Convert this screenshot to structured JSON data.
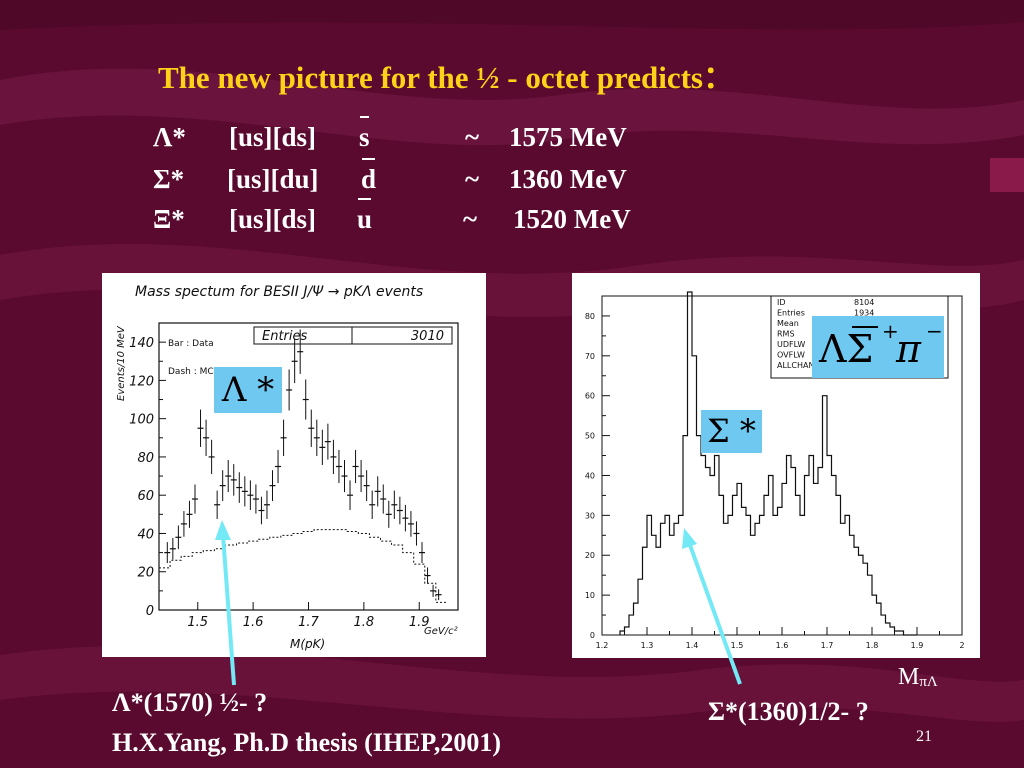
{
  "slide": {
    "title_before": "The new picture for the",
    "title_half": "½",
    "title_after": "- octet predicts",
    "title_colon": "：",
    "rows": [
      {
        "state": "Λ*",
        "content": "[us][ds]",
        "antiquark": "s",
        "approx": "~",
        "mass": "1575 MeV"
      },
      {
        "state": "Σ*",
        "content": "[us][du]",
        "antiquark": "d",
        "approx": "~",
        "mass": "1360 MeV"
      },
      {
        "state": "Ξ*",
        "content": "[us][ds]",
        "antiquark": "u",
        "approx": "~",
        "mass": "1520 MeV"
      }
    ],
    "left_note": {
      "line1": "Λ*(1570) ½-     ?",
      "line2": "H.X.Yang, Ph.D thesis (IHEP,2001)"
    },
    "right_note": "Σ*(1360)1/2- ?",
    "mass_label": "M",
    "mass_label_sub": "πΛ",
    "page_number": "21",
    "colors": {
      "background": "#5a0a2e",
      "title": "#ffd21a",
      "text": "#ffffff",
      "label_box": "#6ec8f0",
      "arrow": "#73e9f5"
    }
  },
  "left_plot": {
    "title": "Mass spectum for BESII J/Ψ → pKΛ events",
    "ylabel": "Events/10 MeV",
    "xlabel": "M(pK)",
    "xunit": "GeV/c²",
    "entries_label": "Entries",
    "entries_value": "3010",
    "legend_bar": "Bar : Data",
    "legend_dash": "Dash : MC",
    "label": "Λ *",
    "x_ticks": [
      "1.5",
      "1.6",
      "1.7",
      "1.8",
      "1.9"
    ],
    "y_ticks": [
      "0",
      "20",
      "40",
      "60",
      "80",
      "100",
      "120",
      "140"
    ]
  },
  "right_plot": {
    "label": "Σ *",
    "channel_label": "ΛΣ",
    "channel_label_pi": "π",
    "x_ticks": [
      "1.2",
      "1.3",
      "1.4",
      "1.5",
      "1.6",
      "1.7",
      "1.8",
      "1.9",
      "2"
    ],
    "y_ticks": [
      "0",
      "10",
      "20",
      "30",
      "40",
      "50",
      "60",
      "70",
      "80"
    ],
    "stats_labels": [
      "ID",
      "Entries",
      "Mean",
      "RMS",
      "UDFLW",
      "OVFLW",
      "ALLCHAN"
    ],
    "stats_values": [
      "8104",
      "1934",
      "",
      "",
      "",
      "",
      ""
    ]
  },
  "chart_data": [
    {
      "type": "scatter",
      "title": "Mass spectum for BESII J/Ψ → pKΛ events",
      "xlabel": "M(pK)",
      "ylabel": "Events/10 MeV",
      "xlim": [
        1.43,
        1.97
      ],
      "ylim": [
        0,
        150
      ],
      "grid": false,
      "legend": "top-left",
      "series": [
        {
          "name": "Data",
          "x": [
            1.445,
            1.455,
            1.465,
            1.475,
            1.485,
            1.495,
            1.505,
            1.515,
            1.525,
            1.535,
            1.545,
            1.555,
            1.565,
            1.575,
            1.585,
            1.595,
            1.605,
            1.615,
            1.625,
            1.635,
            1.645,
            1.655,
            1.665,
            1.675,
            1.685,
            1.695,
            1.705,
            1.715,
            1.725,
            1.735,
            1.745,
            1.755,
            1.765,
            1.775,
            1.785,
            1.795,
            1.805,
            1.815,
            1.825,
            1.835,
            1.845,
            1.855,
            1.865,
            1.875,
            1.885,
            1.895,
            1.905,
            1.915,
            1.925,
            1.935
          ],
          "y": [
            30,
            32,
            38,
            45,
            50,
            58,
            95,
            90,
            80,
            55,
            65,
            70,
            68,
            64,
            62,
            60,
            58,
            52,
            55,
            65,
            75,
            90,
            115,
            130,
            135,
            110,
            95,
            90,
            85,
            88,
            80,
            75,
            70,
            60,
            75,
            70,
            65,
            55,
            62,
            58,
            50,
            55,
            52,
            48,
            45,
            40,
            30,
            18,
            10,
            8
          ]
        },
        {
          "name": "MC",
          "x": [
            1.44,
            1.46,
            1.48,
            1.5,
            1.52,
            1.54,
            1.56,
            1.58,
            1.6,
            1.62,
            1.64,
            1.66,
            1.68,
            1.7,
            1.72,
            1.74,
            1.76,
            1.78,
            1.8,
            1.82,
            1.84,
            1.86,
            1.88,
            1.9,
            1.92,
            1.94
          ],
          "y": [
            22,
            26,
            28,
            30,
            31,
            32,
            34,
            35,
            36,
            37,
            38,
            39,
            40,
            41,
            42,
            42,
            42,
            41,
            40,
            38,
            36,
            34,
            30,
            24,
            14,
            4
          ]
        }
      ]
    },
    {
      "type": "bar",
      "title": "",
      "xlabel": "",
      "ylabel": "",
      "xlim": [
        1.2,
        2.0
      ],
      "ylim": [
        0,
        85
      ],
      "grid": false,
      "series": [
        {
          "name": "",
          "x": [
            1.245,
            1.255,
            1.265,
            1.275,
            1.285,
            1.295,
            1.305,
            1.315,
            1.325,
            1.335,
            1.345,
            1.355,
            1.365,
            1.375,
            1.385,
            1.395,
            1.405,
            1.415,
            1.425,
            1.435,
            1.445,
            1.455,
            1.465,
            1.475,
            1.485,
            1.495,
            1.505,
            1.515,
            1.525,
            1.535,
            1.545,
            1.555,
            1.565,
            1.575,
            1.585,
            1.595,
            1.605,
            1.615,
            1.625,
            1.635,
            1.645,
            1.655,
            1.665,
            1.675,
            1.685,
            1.695,
            1.705,
            1.715,
            1.725,
            1.735,
            1.745,
            1.755,
            1.765,
            1.775,
            1.785,
            1.795,
            1.805,
            1.815,
            1.825,
            1.835,
            1.845,
            1.855,
            1.865,
            1.875,
            1.885,
            1.895
          ],
          "values": [
            1,
            2,
            5,
            8,
            14,
            22,
            30,
            25,
            22,
            28,
            30,
            25,
            28,
            30,
            50,
            86,
            70,
            50,
            45,
            42,
            40,
            45,
            35,
            28,
            30,
            35,
            38,
            32,
            30,
            25,
            28,
            30,
            35,
            40,
            30,
            32,
            38,
            45,
            42,
            35,
            30,
            40,
            45,
            38,
            42,
            60,
            45,
            40,
            35,
            28,
            30,
            25,
            22,
            20,
            18,
            15,
            10,
            8,
            5,
            3,
            2,
            1,
            1,
            0,
            0,
            0
          ]
        }
      ]
    }
  ]
}
